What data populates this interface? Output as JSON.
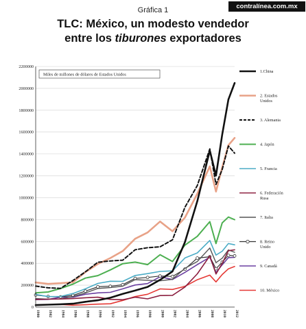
{
  "header": {
    "grafica": "Gráfica 1",
    "brand": "contralínea.com.mx",
    "title_line1": "TLC: México, un modesto vendedor",
    "title_line2_pre": "entre los ",
    "title_line2_em": "tiburones",
    "title_line2_post": " exportadores"
  },
  "chart_data": {
    "type": "line",
    "note": "Miles de millones de dólares de Estados Unidos",
    "ylim": [
      0,
      2200000
    ],
    "y_ticks": [
      0,
      200000,
      400000,
      600000,
      800000,
      1000000,
      1200000,
      1400000,
      1600000,
      1800000,
      2000000,
      2200000
    ],
    "x": [
      1980,
      1982,
      1984,
      1986,
      1988,
      1990,
      1992,
      1994,
      1996,
      1998,
      2000,
      2002,
      2004,
      2006,
      2008,
      2009,
      2010,
      2011,
      2012
    ],
    "x_ticks": [
      "1980",
      "1982",
      "1984",
      "1986",
      "1988",
      "1990",
      "1992",
      "1994",
      "1996",
      "1998",
      "2000",
      "2002",
      "2004",
      "2006",
      "2008",
      "2010",
      "2012"
    ],
    "grid": true,
    "legend_position": "right",
    "series": [
      {
        "name": "1.China",
        "color": "#111111",
        "style": "solid",
        "width": 2.6,
        "values": [
          18000,
          22000,
          26000,
          31000,
          48000,
          62000,
          85000,
          121000,
          151000,
          184000,
          249000,
          326000,
          593000,
          969000,
          1431000,
          1202000,
          1578000,
          1898000,
          2049000
        ]
      },
      {
        "name": "2. Estados Unidos",
        "color": "#e8a287",
        "style": "solid",
        "width": 2.6,
        "values": [
          225000,
          212000,
          218000,
          227000,
          320000,
          394000,
          448000,
          512000,
          625000,
          682000,
          782000,
          693000,
          818000,
          1037000,
          1287000,
          1056000,
          1278000,
          1480000,
          1547000
        ]
      },
      {
        "name": "3. Alemania",
        "color": "#111111",
        "style": "dashed",
        "width": 2.0,
        "values": [
          192000,
          176000,
          171000,
          243000,
          323000,
          410000,
          422000,
          429000,
          524000,
          543000,
          551000,
          615000,
          912000,
          1112000,
          1446000,
          1121000,
          1258000,
          1473000,
          1407000
        ]
      },
      {
        "name": "4. Japón",
        "color": "#4caf50",
        "style": "solid",
        "width": 2.0,
        "values": [
          130000,
          138000,
          170000,
          210000,
          265000,
          288000,
          340000,
          397000,
          411000,
          388000,
          479000,
          417000,
          566000,
          647000,
          781000,
          581000,
          770000,
          823000,
          799000
        ]
      },
      {
        "name": "5. Francia",
        "color": "#4bacc6",
        "style": "solid",
        "width": 1.6,
        "values": [
          116000,
          96000,
          97000,
          124000,
          167000,
          216000,
          236000,
          235000,
          289000,
          306000,
          326000,
          331000,
          449000,
          495000,
          609000,
          475000,
          511000,
          581000,
          569000
        ]
      },
      {
        "name": "6. Federación Rusa",
        "color": "#8b1e3f",
        "style": "solid",
        "width": 1.6,
        "values": [
          70000,
          72000,
          74000,
          78000,
          85000,
          90000,
          70000,
          67000,
          90000,
          75000,
          105000,
          107000,
          183000,
          304000,
          468000,
          302000,
          400000,
          515000,
          524000
        ]
      },
      {
        "name": "7. Italia",
        "color": "#555555",
        "style": "solid",
        "width": 1.4,
        "values": [
          78000,
          73000,
          74000,
          98000,
          129000,
          170000,
          178000,
          191000,
          251000,
          245000,
          240000,
          254000,
          354000,
          417000,
          540000,
          406000,
          447000,
          523000,
          501000
        ]
      },
      {
        "name": "8. Reino Unido",
        "color": "#333333",
        "style": "markers",
        "width": 1.2,
        "values": [
          110000,
          97000,
          93000,
          107000,
          146000,
          185000,
          190000,
          205000,
          262000,
          271000,
          284000,
          280000,
          347000,
          448000,
          460000,
          351000,
          410000,
          473000,
          468000
        ]
      },
      {
        "name": "9. Canadá",
        "color": "#6a3fa0",
        "style": "solid",
        "width": 1.6,
        "values": [
          68000,
          70000,
          91000,
          90000,
          117000,
          130000,
          135000,
          167000,
          202000,
          215000,
          277000,
          252000,
          317000,
          388000,
          456000,
          316000,
          387000,
          452000,
          455000
        ]
      },
      {
        "name": "10. México",
        "color": "#e53935",
        "style": "solid",
        "width": 1.6,
        "values": [
          18000,
          21000,
          24000,
          17000,
          21000,
          27000,
          30000,
          61000,
          96000,
          117000,
          166000,
          161000,
          189000,
          250000,
          292000,
          230000,
          298000,
          350000,
          371000
        ]
      }
    ]
  }
}
